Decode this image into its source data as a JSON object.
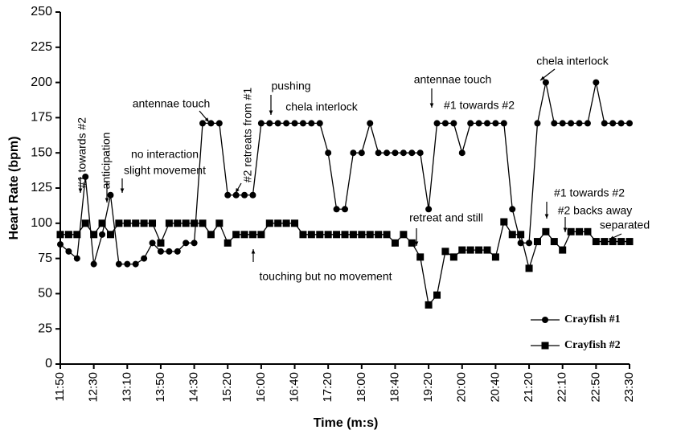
{
  "chart_data": {
    "type": "line",
    "x_label": "Time (m:s)",
    "y_label": "Heart Rate (bpm)",
    "categories": [
      "11:50",
      null,
      null,
      null,
      "12:30",
      null,
      null,
      null,
      "13:10",
      null,
      null,
      null,
      "13:50",
      null,
      null,
      null,
      "14:30",
      null,
      null,
      null,
      "15:20",
      null,
      null,
      null,
      "16:00",
      null,
      null,
      null,
      "16:40",
      null,
      null,
      null,
      "17:20",
      null,
      null,
      null,
      "18:00",
      null,
      null,
      null,
      "18:40",
      null,
      null,
      null,
      "19:20",
      null,
      null,
      null,
      "20:00",
      null,
      null,
      null,
      "20:40",
      null,
      null,
      null,
      "21:20",
      null,
      null,
      null,
      "22:10",
      null,
      null,
      null,
      "22:50",
      null,
      null,
      null,
      "23:30"
    ],
    "series": [
      {
        "name": "Crayfish #1",
        "marker": "circle",
        "color": "#000000",
        "values": [
          85,
          80,
          75,
          133,
          71,
          92,
          120,
          71,
          71,
          71,
          75,
          86,
          80,
          80,
          80,
          86,
          86,
          171,
          171,
          171,
          120,
          120,
          120,
          120,
          171,
          171,
          171,
          171,
          171,
          171,
          171,
          171,
          150,
          110,
          110,
          150,
          150,
          171,
          150,
          150,
          150,
          150,
          150,
          150,
          110,
          171,
          171,
          171,
          150,
          171,
          171,
          171,
          171,
          171,
          110,
          86,
          86,
          171,
          200,
          171,
          171,
          171,
          171,
          171,
          200,
          171,
          171,
          171,
          171
        ]
      },
      {
        "name": "Crayfish #2",
        "marker": "square",
        "color": "#000000",
        "values": [
          92,
          92,
          92,
          100,
          92,
          100,
          92,
          100,
          100,
          100,
          100,
          100,
          86,
          100,
          100,
          100,
          100,
          100,
          92,
          100,
          86,
          92,
          92,
          92,
          92,
          100,
          100,
          100,
          100,
          92,
          92,
          92,
          92,
          92,
          92,
          92,
          92,
          92,
          92,
          92,
          86,
          92,
          86,
          76,
          42,
          49,
          80,
          76,
          81,
          81,
          81,
          81,
          76,
          101,
          92,
          92,
          68,
          87,
          94,
          87,
          81,
          94,
          94,
          94,
          87,
          87,
          87,
          87,
          87
        ]
      }
    ],
    "ylim": [
      0,
      250
    ],
    "yticks": [
      0,
      25,
      50,
      75,
      100,
      125,
      150,
      175,
      200,
      225,
      250
    ],
    "legend": "lower right",
    "annotations": [
      "#1 towards #2",
      "anticipation",
      "no interaction",
      "slight movement",
      "antennae touch",
      "#2 retreats from #1",
      "pushing",
      "chela interlock",
      "antennae touch",
      "#1 towards #2",
      "chela interlock",
      "retreat and still",
      "touching but no movement",
      "#1 towards #2",
      "#2 backs away",
      "separated"
    ]
  }
}
